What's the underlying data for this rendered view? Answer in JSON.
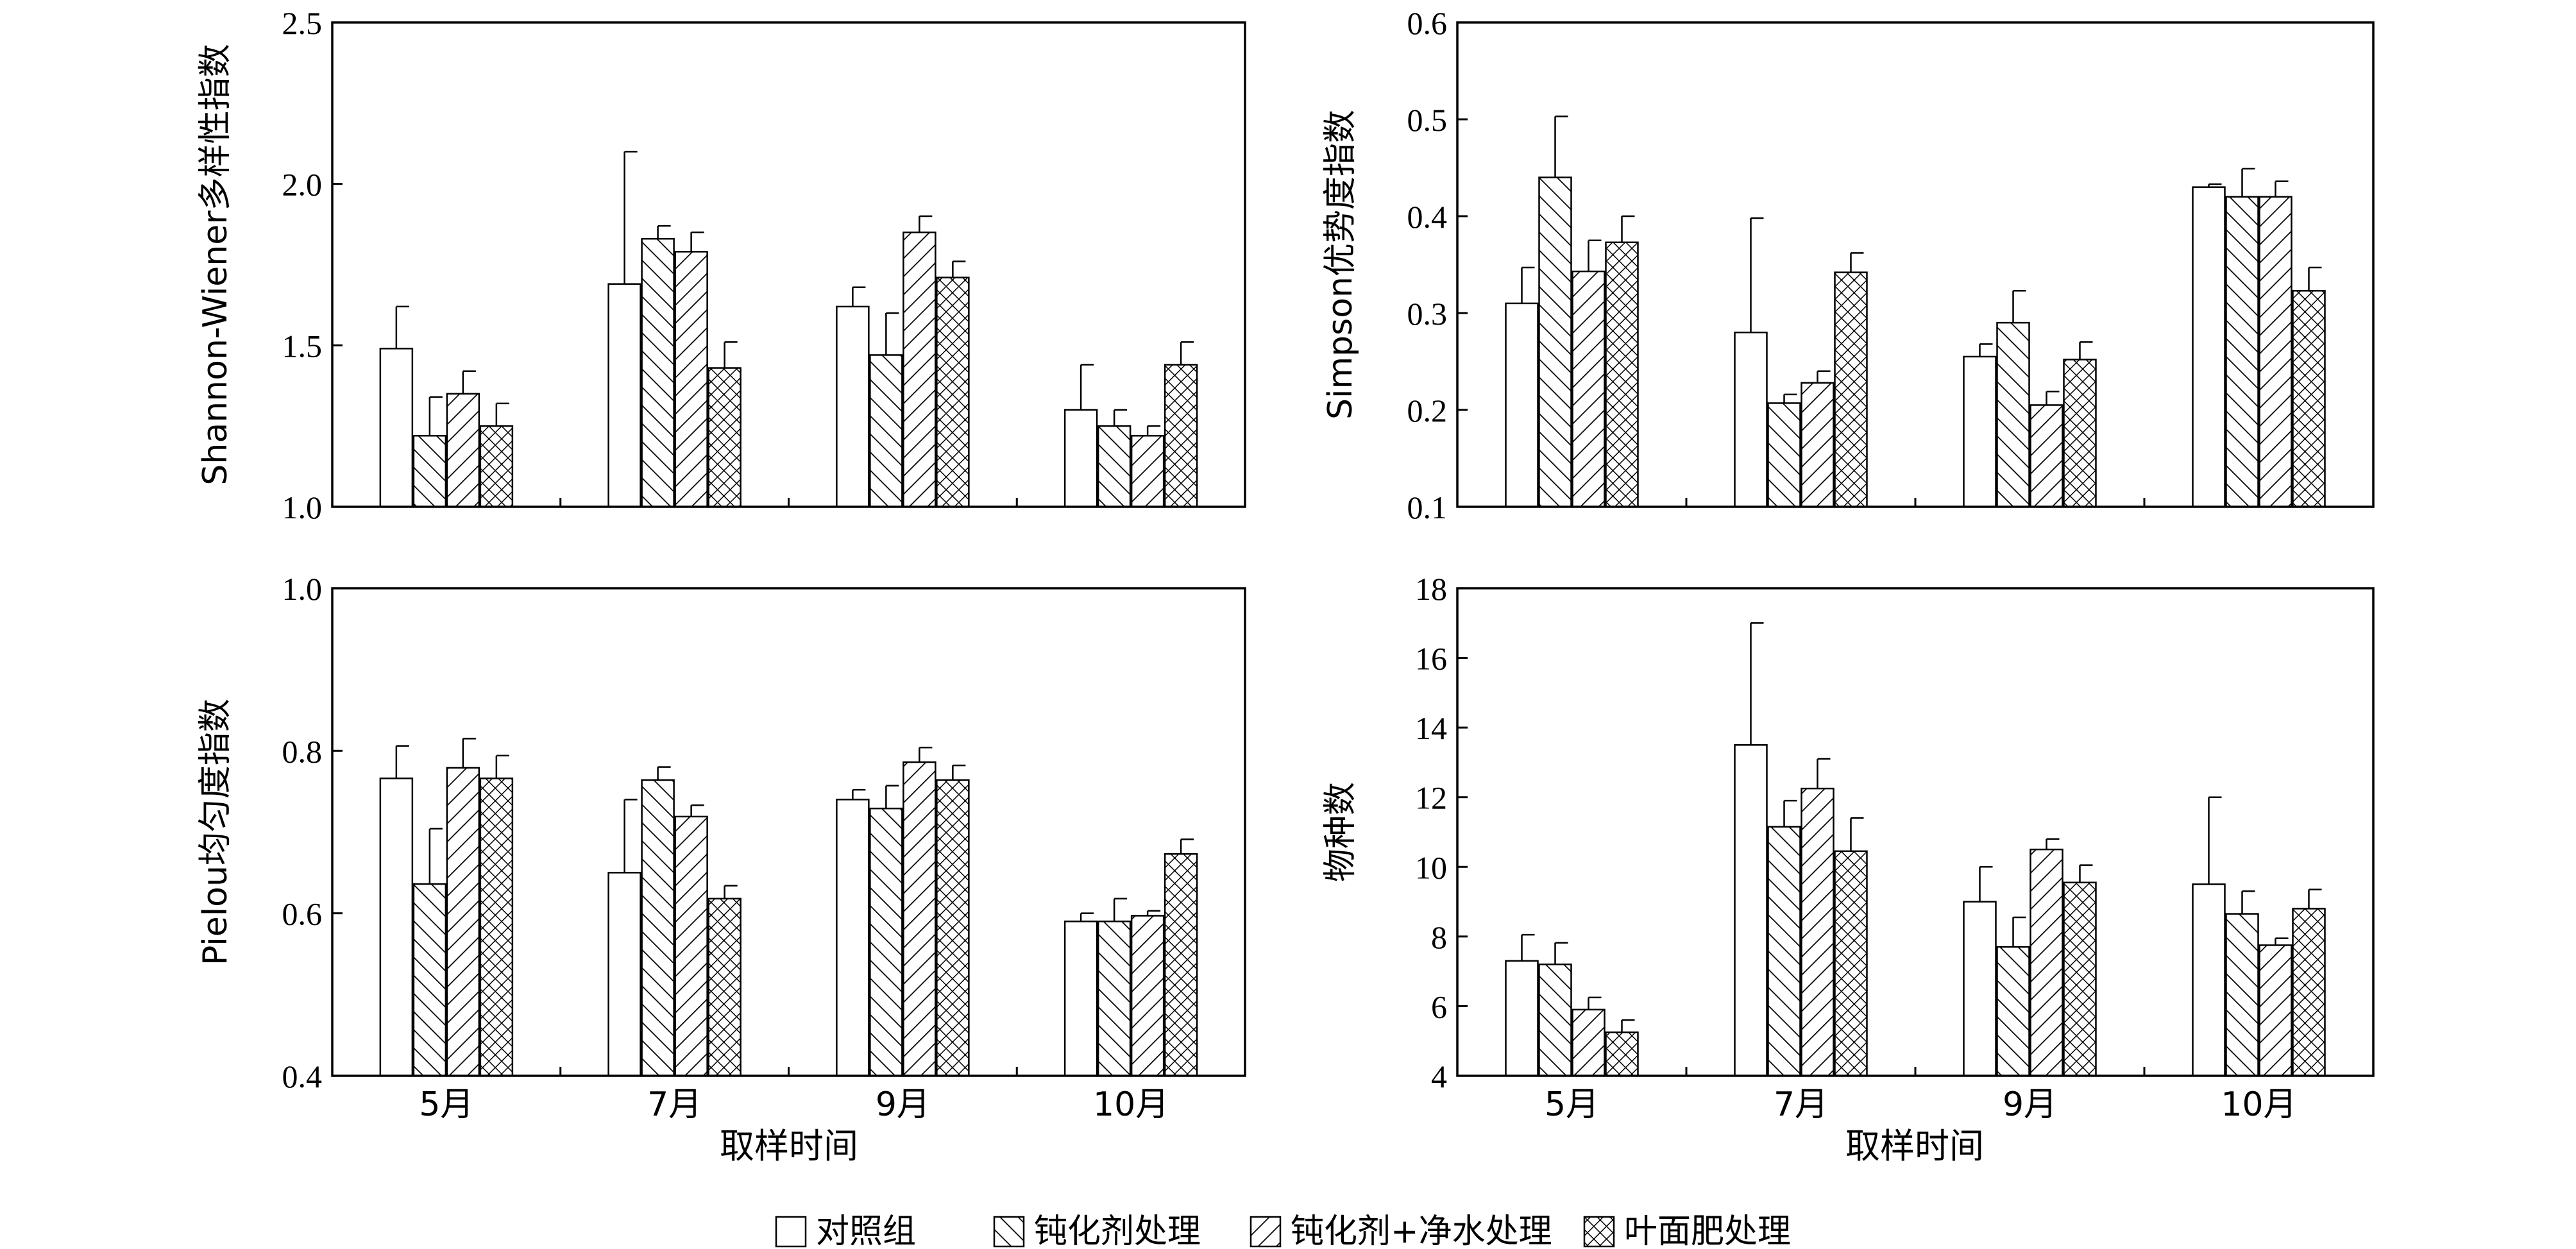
{
  "series_names": [
    "对照组",
    "钝化剂处理",
    "钝化剂+净水处理",
    "叶面肥处理"
  ],
  "categories": [
    "5月",
    "7月",
    "9月",
    "10月"
  ],
  "xlabel": "取样时间",
  "chart_data": [
    {
      "type": "bar",
      "ylabel": "Shannon-Wiener多样性指数",
      "ylim": [
        1.0,
        2.5
      ],
      "yticks": [
        "1.0",
        "1.5",
        "2.0",
        "2.5"
      ],
      "categories": [
        "5月",
        "7月",
        "9月",
        "10月"
      ],
      "series": [
        {
          "name": "对照组",
          "values": [
            1.49,
            1.69,
            1.62,
            1.3
          ],
          "errors": [
            0.13,
            0.41,
            0.06,
            0.14
          ]
        },
        {
          "name": "钝化剂处理",
          "values": [
            1.22,
            1.83,
            1.47,
            1.25
          ],
          "errors": [
            0.12,
            0.04,
            0.13,
            0.05
          ]
        },
        {
          "name": "钝化剂+净水处理",
          "values": [
            1.35,
            1.79,
            1.85,
            1.22
          ],
          "errors": [
            0.07,
            0.06,
            0.05,
            0.03
          ]
        },
        {
          "name": "叶面肥处理",
          "values": [
            1.25,
            1.43,
            1.71,
            1.44
          ],
          "errors": [
            0.07,
            0.08,
            0.05,
            0.07
          ]
        }
      ]
    },
    {
      "type": "bar",
      "ylabel": "Simpson优势度指数",
      "ylim": [
        0.1,
        0.6
      ],
      "yticks": [
        "0.1",
        "0.2",
        "0.3",
        "0.4",
        "0.5",
        "0.6"
      ],
      "categories": [
        "5月",
        "7月",
        "9月",
        "10月"
      ],
      "series": [
        {
          "name": "对照组",
          "values": [
            0.31,
            0.28,
            0.255,
            0.43
          ],
          "errors": [
            0.037,
            0.118,
            0.013,
            0.003
          ]
        },
        {
          "name": "钝化剂处理",
          "values": [
            0.44,
            0.207,
            0.29,
            0.42
          ],
          "errors": [
            0.063,
            0.009,
            0.033,
            0.029
          ]
        },
        {
          "name": "钝化剂+净水处理",
          "values": [
            0.343,
            0.228,
            0.205,
            0.42
          ],
          "errors": [
            0.032,
            0.012,
            0.014,
            0.016
          ]
        },
        {
          "name": "叶面肥处理",
          "values": [
            0.373,
            0.342,
            0.252,
            0.323
          ],
          "errors": [
            0.027,
            0.02,
            0.018,
            0.024
          ]
        }
      ]
    },
    {
      "type": "bar",
      "ylabel": "Pielou均匀度指数",
      "ylim": [
        0.4,
        1.0
      ],
      "yticks": [
        "0.4",
        "0.6",
        "0.8",
        "1.0"
      ],
      "categories": [
        "5月",
        "7月",
        "9月",
        "10月"
      ],
      "series": [
        {
          "name": "对照组",
          "values": [
            0.766,
            0.65,
            0.74,
            0.59
          ],
          "errors": [
            0.04,
            0.09,
            0.012,
            0.01
          ]
        },
        {
          "name": "钝化剂处理",
          "values": [
            0.636,
            0.764,
            0.729,
            0.59
          ],
          "errors": [
            0.068,
            0.016,
            0.028,
            0.028
          ]
        },
        {
          "name": "钝化剂+净水处理",
          "values": [
            0.779,
            0.719,
            0.786,
            0.597
          ],
          "errors": [
            0.036,
            0.014,
            0.018,
            0.006
          ]
        },
        {
          "name": "叶面肥处理",
          "values": [
            0.766,
            0.618,
            0.764,
            0.673
          ],
          "errors": [
            0.028,
            0.016,
            0.018,
            0.018
          ]
        }
      ]
    },
    {
      "type": "bar",
      "ylabel": "物种数",
      "ylim": [
        4,
        18
      ],
      "yticks": [
        "4",
        "6",
        "8",
        "10",
        "12",
        "14",
        "16",
        "18"
      ],
      "categories": [
        "5月",
        "7月",
        "9月",
        "10月"
      ],
      "series": [
        {
          "name": "对照组",
          "values": [
            7.3,
            13.5,
            9.0,
            9.5
          ],
          "errors": [
            0.75,
            3.5,
            1.0,
            2.5
          ]
        },
        {
          "name": "钝化剂处理",
          "values": [
            7.2,
            11.15,
            7.7,
            8.65
          ],
          "errors": [
            0.62,
            0.75,
            0.85,
            0.65
          ]
        },
        {
          "name": "钝化剂+净水处理",
          "values": [
            5.9,
            12.25,
            10.5,
            7.75
          ],
          "errors": [
            0.35,
            0.85,
            0.3,
            0.2
          ]
        },
        {
          "name": "叶面肥处理",
          "values": [
            5.25,
            10.45,
            9.55,
            8.8
          ],
          "errors": [
            0.35,
            0.95,
            0.5,
            0.55
          ]
        }
      ]
    }
  ]
}
